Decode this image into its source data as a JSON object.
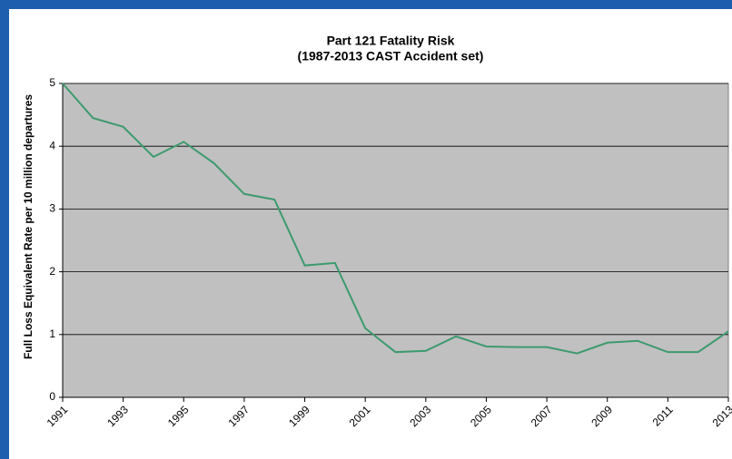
{
  "chart_data": {
    "type": "line",
    "title": [
      "Part 121 Fatality Risk",
      "(1987-2013 CAST Accident set)"
    ],
    "y_label": "Full Loss Equivalent Rate per 10 million departures",
    "x": [
      1991,
      1992,
      1993,
      1994,
      1995,
      1996,
      1997,
      1998,
      1999,
      2000,
      2001,
      2002,
      2003,
      2004,
      2005,
      2006,
      2007,
      2008,
      2009,
      2010,
      2011,
      2012,
      2013
    ],
    "series": [
      {
        "name": "Fatality Risk",
        "color": "#3c9a6e",
        "values": [
          5.0,
          4.45,
          4.31,
          3.83,
          4.07,
          3.73,
          3.24,
          3.15,
          2.1,
          2.14,
          1.1,
          0.72,
          0.74,
          0.97,
          0.81,
          0.8,
          0.8,
          0.7,
          0.87,
          0.9,
          0.72,
          0.72,
          1.05
        ]
      }
    ],
    "xlim": [
      1991,
      2013
    ],
    "xticks": [
      1991,
      1993,
      1995,
      1997,
      1999,
      2001,
      2003,
      2005,
      2007,
      2009,
      2011,
      2013
    ],
    "ylim": [
      0,
      5
    ],
    "yticks": [
      0,
      1,
      2,
      3,
      4,
      5
    ],
    "grid": true,
    "plot_background": "#c0c0c0"
  }
}
